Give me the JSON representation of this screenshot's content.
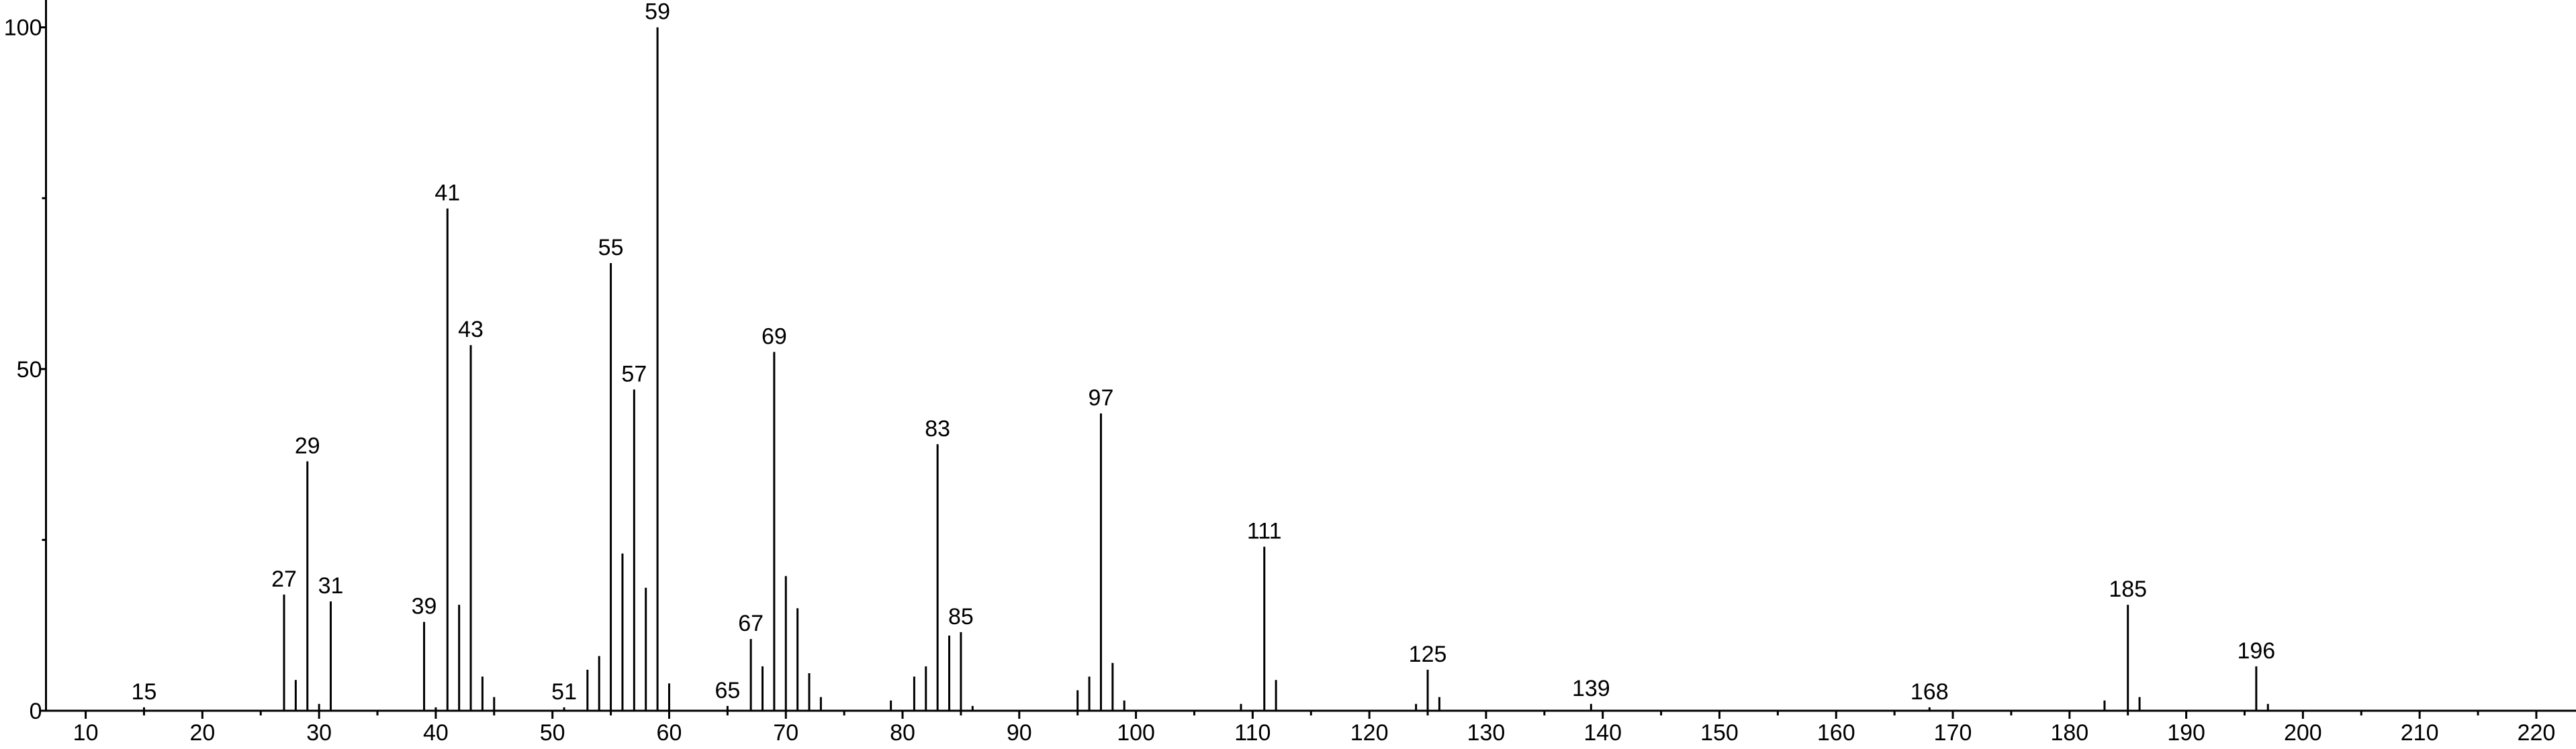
{
  "chart_data": {
    "type": "stem",
    "x": [
      15,
      27,
      28,
      29,
      30,
      31,
      39,
      40,
      41,
      42,
      43,
      44,
      45,
      51,
      53,
      54,
      55,
      56,
      57,
      58,
      59,
      60,
      65,
      67,
      68,
      69,
      70,
      71,
      72,
      73,
      79,
      81,
      82,
      83,
      84,
      85,
      86,
      95,
      96,
      97,
      98,
      99,
      109,
      111,
      112,
      124,
      125,
      126,
      139,
      168,
      183,
      185,
      186,
      196,
      197
    ],
    "values": [
      0.5,
      17,
      4.5,
      36.5,
      1,
      16,
      13,
      0.5,
      73.5,
      15.5,
      53.5,
      5,
      2,
      0.5,
      6,
      8,
      65.5,
      23,
      47,
      18,
      100,
      4,
      0.7,
      10.5,
      6.5,
      52.5,
      19.7,
      15,
      5.5,
      2,
      1.5,
      5,
      6.5,
      39,
      11,
      11.5,
      0.7,
      3,
      5,
      43.5,
      7,
      1.5,
      1,
      24,
      4.5,
      1,
      6,
      2,
      1,
      0.5,
      1.5,
      15.5,
      2,
      6.5,
      1
    ],
    "peak_labels": [
      15,
      27,
      29,
      31,
      39,
      41,
      43,
      51,
      55,
      57,
      59,
      65,
      67,
      69,
      83,
      85,
      97,
      111,
      125,
      139,
      168,
      185,
      196
    ],
    "color": "#000000",
    "xlim": [
      6.6,
      223.4
    ],
    "xticks": [
      10,
      20,
      30,
      40,
      50,
      60,
      70,
      80,
      90,
      100,
      110,
      120,
      130,
      140,
      150,
      160,
      170,
      180,
      190,
      200,
      210,
      220
    ],
    "xminor": [
      15,
      25,
      35,
      45,
      55,
      65,
      75,
      85,
      95,
      105,
      115,
      125,
      135,
      145,
      155,
      165,
      175,
      185,
      195,
      205,
      215
    ],
    "ylim": [
      0,
      104
    ],
    "yticks": [
      0,
      50,
      100
    ],
    "yminor": [
      25,
      75
    ]
  }
}
